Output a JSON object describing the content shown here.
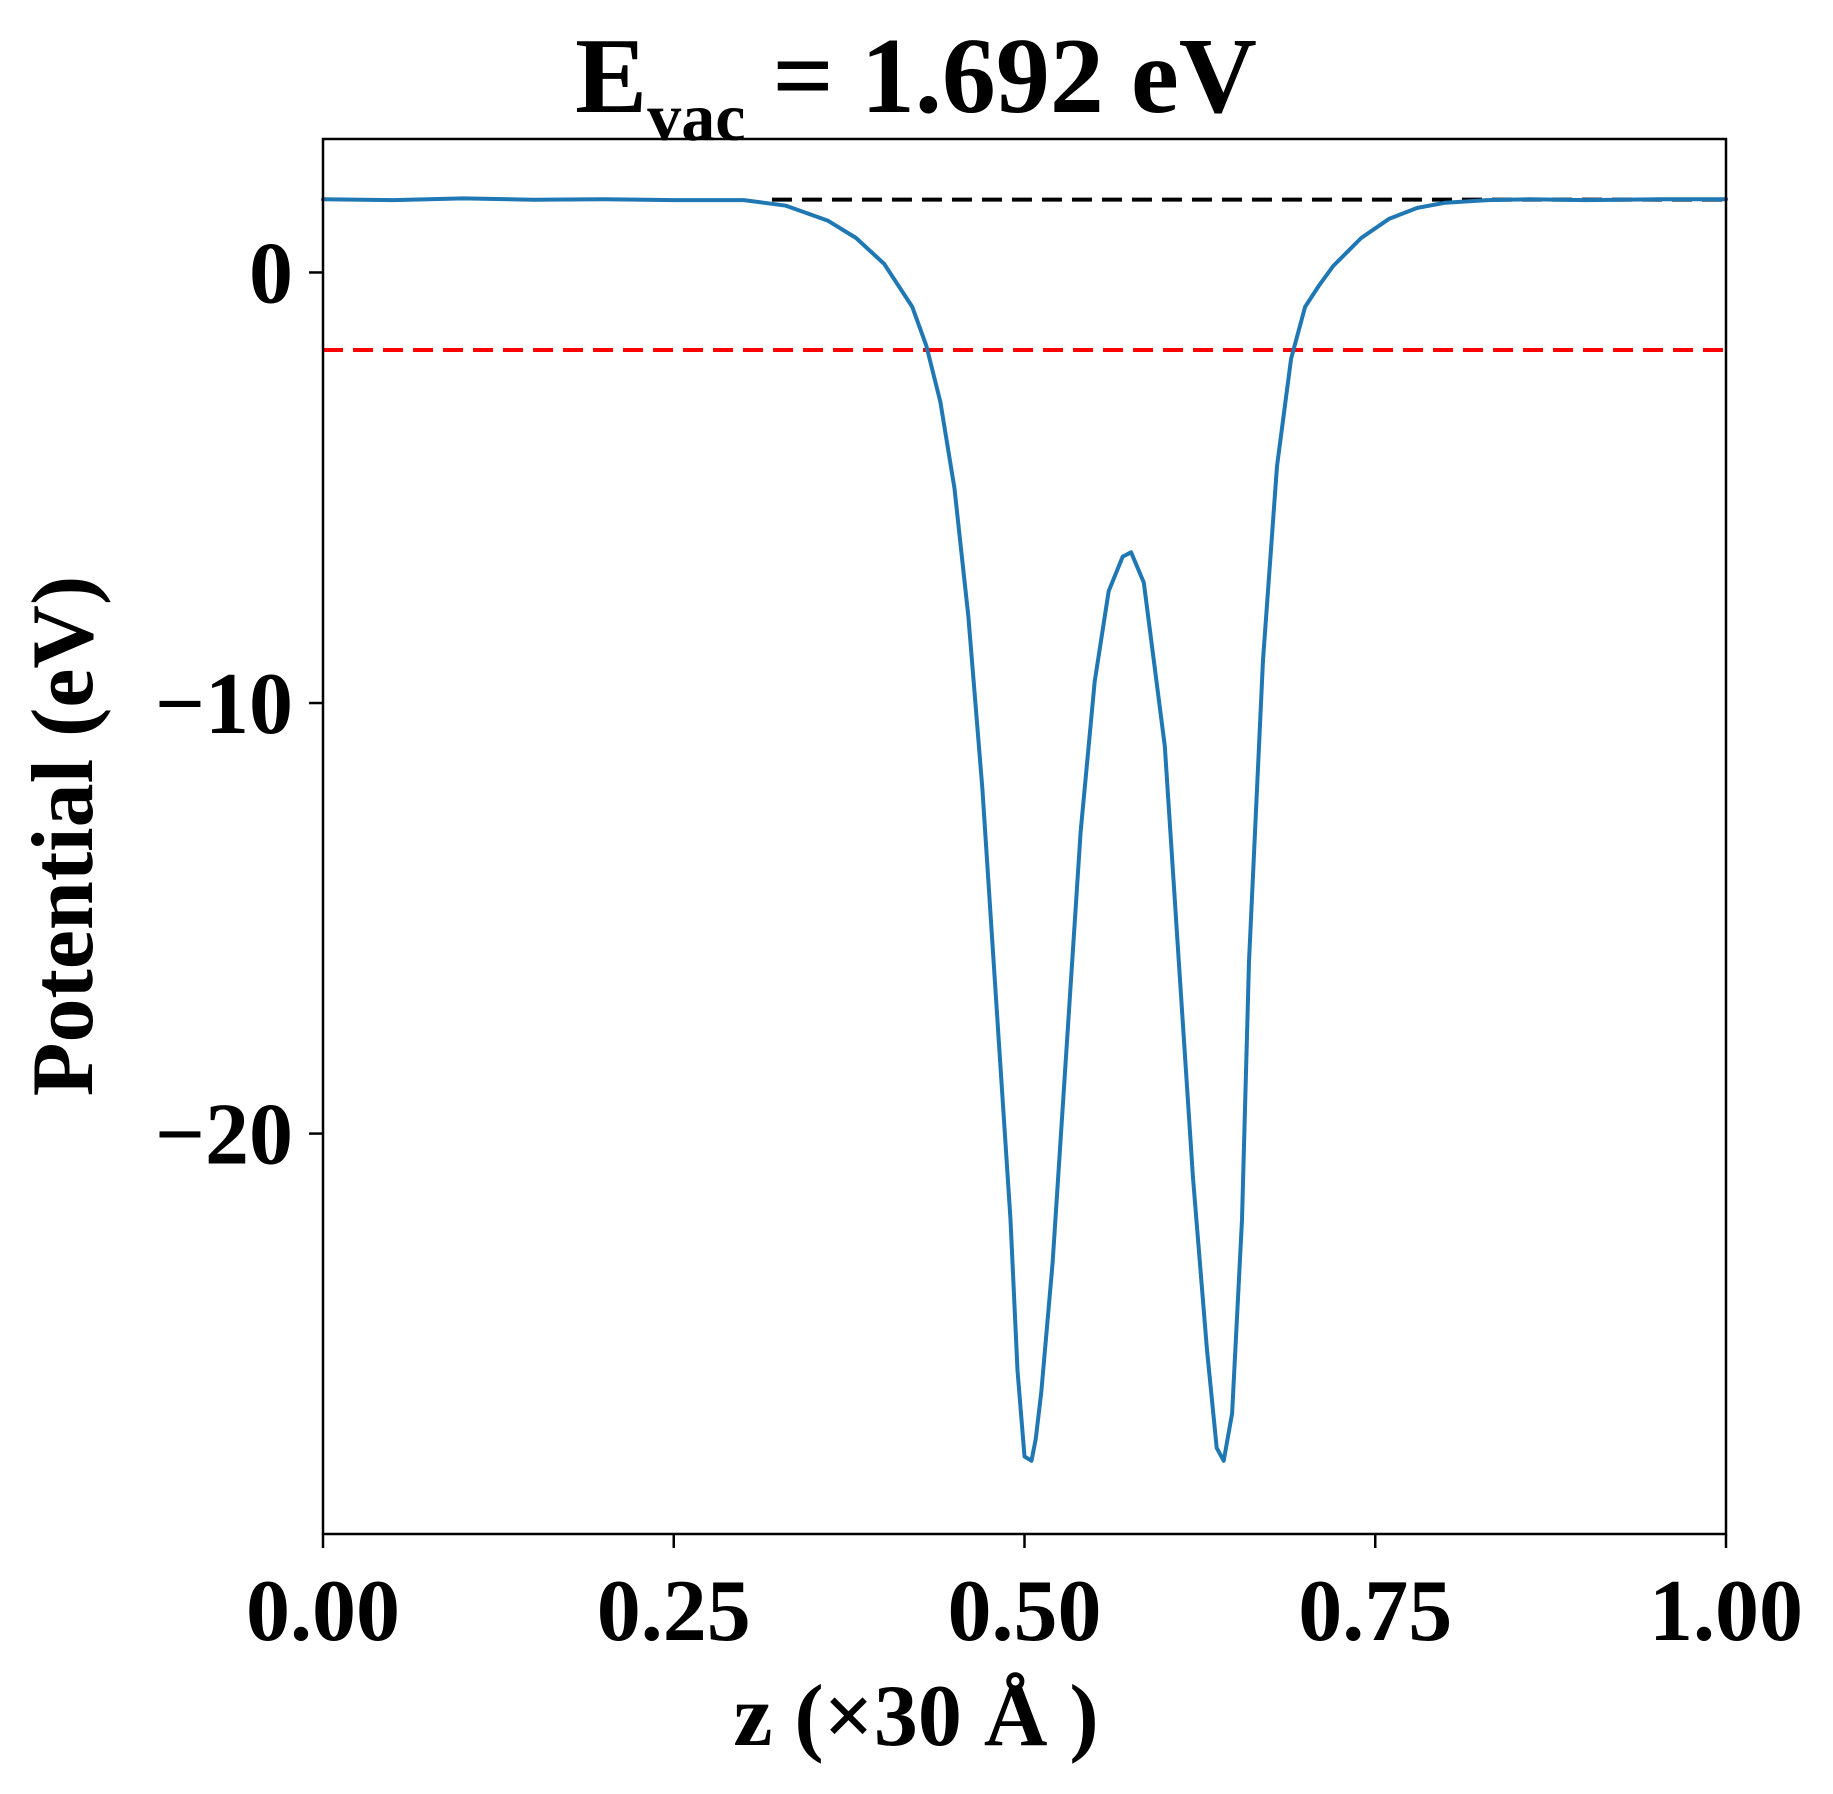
{
  "chart_data": {
    "type": "line",
    "title": {
      "main": "E",
      "sub": "vac",
      "rest": " = 1.692 eV"
    },
    "xlabel": "z (×30 Å )",
    "ylabel": "Potential (eV)",
    "xlim": [
      0.0,
      1.0
    ],
    "ylim": [
      -29.3,
      3.1
    ],
    "xticks": [
      0.0,
      0.25,
      0.5,
      0.75,
      1.0
    ],
    "xtick_labels": [
      "0.00",
      "0.25",
      "0.50",
      "0.75",
      "1.00"
    ],
    "yticks": [
      0,
      -10,
      -20
    ],
    "ytick_labels": [
      "0",
      "−10",
      "−20"
    ],
    "grid": false,
    "reference_lines": [
      {
        "kind": "vacuum-level",
        "y": 1.692,
        "x_start": 0.32,
        "x_end": 1.0,
        "color": "#000000",
        "style": "dashed"
      },
      {
        "kind": "fermi-level",
        "y": -1.8,
        "x_start": 0.0,
        "x_end": 1.0,
        "color": "#ff0000",
        "style": "dashed"
      }
    ],
    "series": [
      {
        "color": "#1f77b4",
        "x": [
          0.0,
          0.05,
          0.1,
          0.15,
          0.2,
          0.25,
          0.3,
          0.33,
          0.36,
          0.38,
          0.4,
          0.42,
          0.43,
          0.44,
          0.45,
          0.46,
          0.47,
          0.48,
          0.49,
          0.495,
          0.5,
          0.505,
          0.508,
          0.512,
          0.52,
          0.53,
          0.54,
          0.55,
          0.56,
          0.57,
          0.576,
          0.585,
          0.6,
          0.61,
          0.62,
          0.63,
          0.637,
          0.642,
          0.648,
          0.655,
          0.66,
          0.67,
          0.68,
          0.69,
          0.7,
          0.71,
          0.72,
          0.74,
          0.76,
          0.78,
          0.8,
          0.83,
          0.86,
          0.9,
          0.95,
          1.0
        ],
        "y": [
          1.7,
          1.68,
          1.72,
          1.69,
          1.7,
          1.68,
          1.68,
          1.55,
          1.2,
          0.8,
          0.2,
          -0.8,
          -1.7,
          -3.0,
          -5.0,
          -8.0,
          -12.0,
          -17.0,
          -22.0,
          -25.5,
          -27.5,
          -27.6,
          -27.1,
          -26.0,
          -23.0,
          -18.0,
          -13.0,
          -9.5,
          -7.4,
          -6.6,
          -6.5,
          -7.2,
          -11.0,
          -16.0,
          -21.0,
          -25.0,
          -27.3,
          -27.6,
          -26.5,
          -22.0,
          -16.0,
          -9.0,
          -4.5,
          -2.0,
          -0.8,
          -0.3,
          0.15,
          0.8,
          1.25,
          1.5,
          1.62,
          1.68,
          1.7,
          1.68,
          1.7,
          1.7
        ]
      }
    ]
  }
}
